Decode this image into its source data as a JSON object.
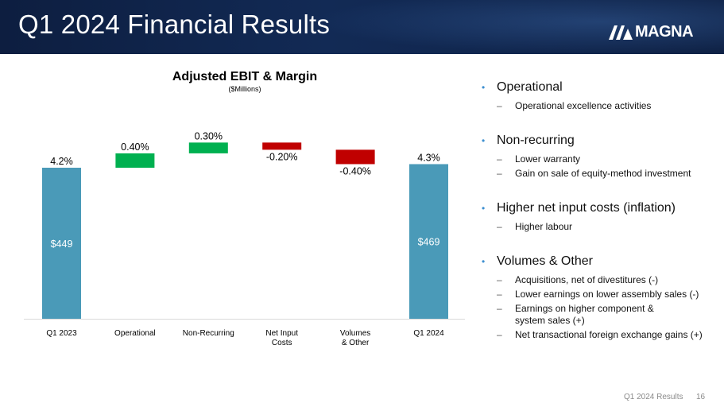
{
  "slide": {
    "title": "Q1 2024 Financial Results",
    "logo_text": "MAGNA",
    "footer_label": "Q1 2024 Results",
    "page_number": "16"
  },
  "colors": {
    "header": "#0f2246",
    "total_bar": "#4a9ab8",
    "increase_bar": "#00b050",
    "decrease_bar": "#c00000",
    "bullet": "#3d8fd0"
  },
  "chart_data": {
    "type": "waterfall",
    "title": "Adjusted EBIT & Margin",
    "subtitle": "($Millions)",
    "unit": "margin %",
    "categories": [
      "Q1 2023",
      "Operational",
      "Non-Recurring",
      "Net Input\nCosts",
      "Volumes\n& Other",
      "Q1 2024"
    ],
    "steps": [
      {
        "category": "Q1 2023",
        "kind": "total",
        "value": 4.2,
        "label": "4.2%",
        "inner_label": "$449"
      },
      {
        "category": "Operational",
        "kind": "increase",
        "value": 0.4,
        "label": "0.40%"
      },
      {
        "category": "Non-Recurring",
        "kind": "increase",
        "value": 0.3,
        "label": "0.30%"
      },
      {
        "category": "Net Input\nCosts",
        "kind": "decrease",
        "value": -0.2,
        "label": "-0.20%"
      },
      {
        "category": "Volumes\n& Other",
        "kind": "decrease",
        "value": -0.4,
        "label": "-0.40%"
      },
      {
        "category": "Q1 2024",
        "kind": "total",
        "value": 4.3,
        "label": "4.3%",
        "inner_label": "$469"
      }
    ],
    "xlabel": "",
    "ylabel": "",
    "gridlines": false
  },
  "bullets": [
    {
      "text": "Operational",
      "subs": [
        "Operational excellence activities"
      ]
    },
    {
      "text": "Non-recurring",
      "subs": [
        "Lower warranty",
        "Gain on sale of equity-method investment"
      ]
    },
    {
      "text": "Higher net input costs (inflation)",
      "subs": [
        "Higher labour"
      ]
    },
    {
      "text": "Volumes & Other",
      "subs": [
        "Acquisitions, net of divestitures (-)",
        "Lower earnings on lower assembly sales (-)",
        "Earnings on higher component &\nsystem sales (+)",
        "Net transactional foreign exchange gains (+)"
      ]
    }
  ]
}
